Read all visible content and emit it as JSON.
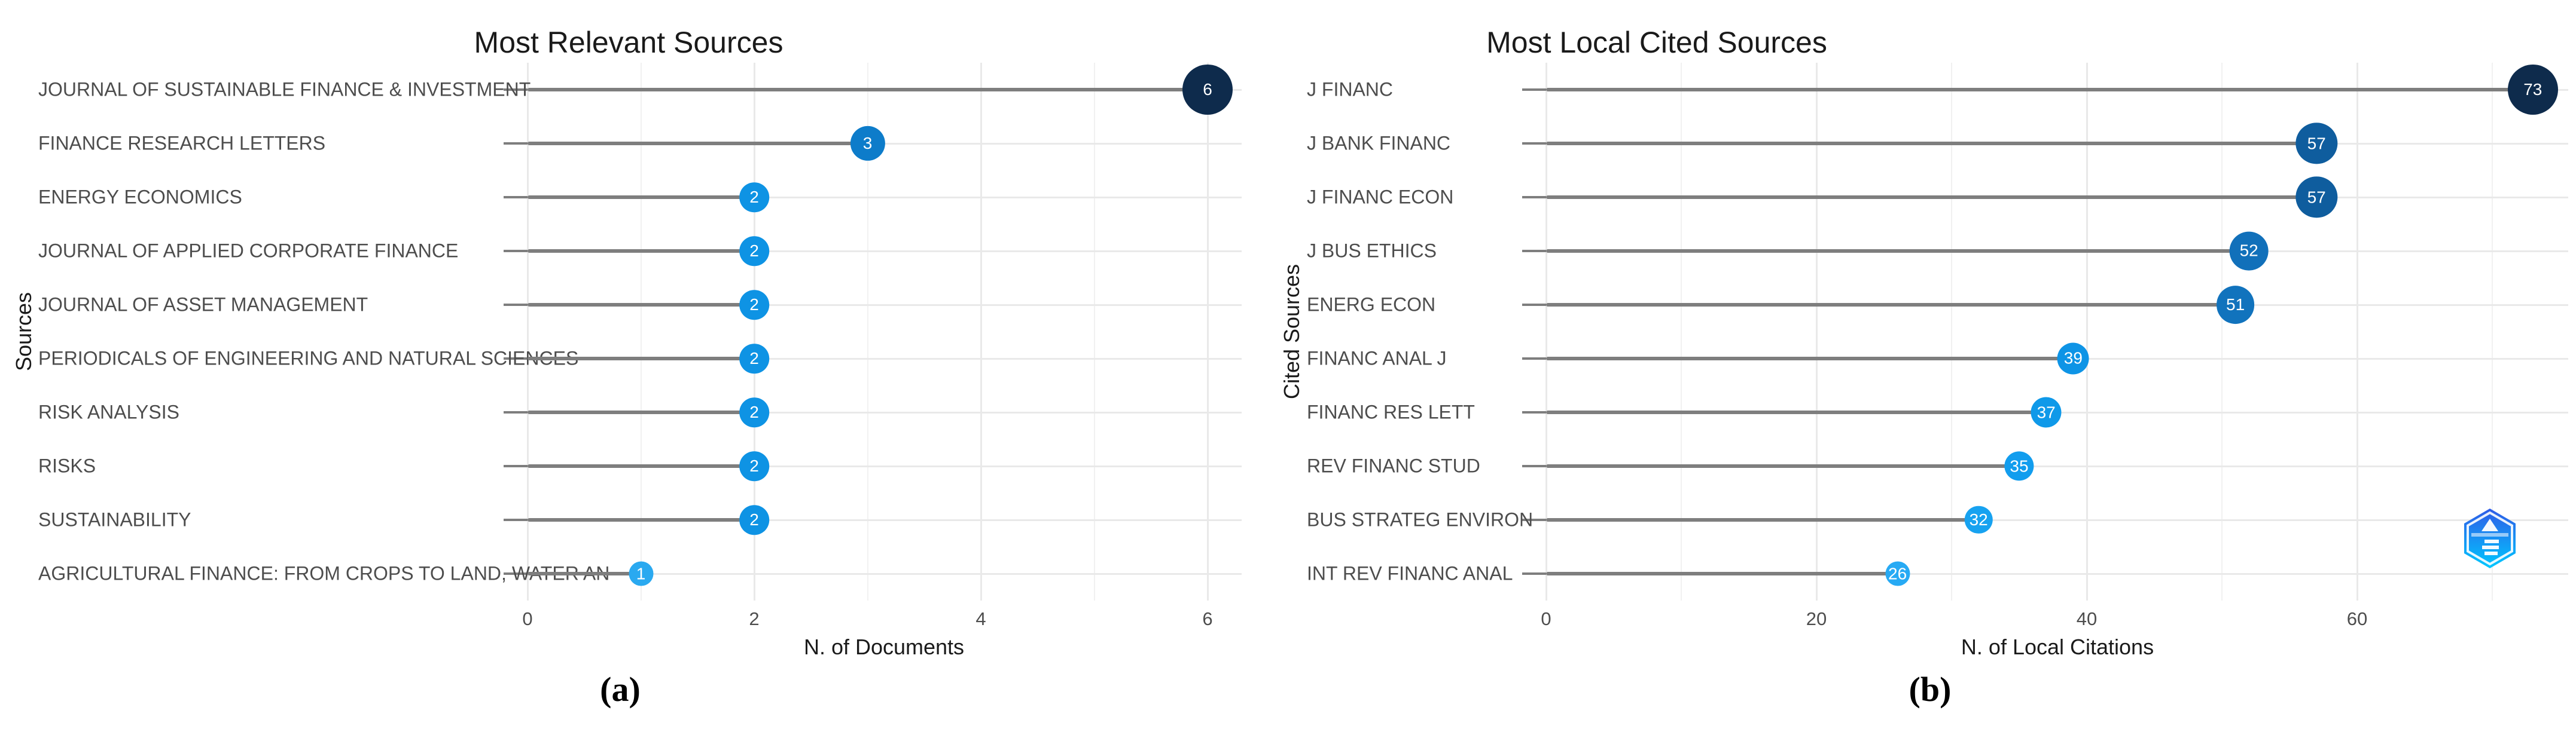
{
  "page": {
    "background": "#ffffff"
  },
  "captions": {
    "a": "(a)",
    "b": "(b)"
  },
  "colors": {
    "stem": "#7e7e7e",
    "grid_major": "#e9e9e9",
    "grid_minor": "#f1f1f1",
    "axis_text": "#4d4d4d",
    "axis_title": "#1a1a1a",
    "bubble_text": "#ffffff",
    "logo_gradient_top": "#2f5be7",
    "logo_gradient_bottom": "#00c8ff"
  },
  "chart_data": [
    {
      "type": "lollipop",
      "title": "Most Relevant Sources",
      "xlabel": "N. of Documents",
      "ylabel": "Sources",
      "categories": [
        "JOURNAL OF SUSTAINABLE FINANCE & INVESTMENT",
        "FINANCE RESEARCH LETTERS",
        "ENERGY ECONOMICS",
        "JOURNAL OF APPLIED CORPORATE FINANCE",
        "JOURNAL OF ASSET MANAGEMENT",
        "PERIODICALS OF ENGINEERING AND NATURAL SCIENCES",
        "RISK ANALYSIS",
        "RISKS",
        "SUSTAINABILITY",
        "AGRICULTURAL FINANCE: FROM CROPS TO LAND, WATER AN"
      ],
      "values": [
        6,
        3,
        2,
        2,
        2,
        2,
        2,
        2,
        2,
        1
      ],
      "point_colors": [
        "#0e2b4c",
        "#0d7cca",
        "#0e93e4",
        "#0e93e4",
        "#0e93e4",
        "#0e93e4",
        "#0e93e4",
        "#0e93e4",
        "#0e93e4",
        "#2aa9f0"
      ],
      "xticks": [
        0,
        2,
        4,
        6
      ],
      "xticks_minor": [
        1,
        3,
        5
      ],
      "xlim": [
        0,
        6.3
      ],
      "grid": true,
      "legend": "none"
    },
    {
      "type": "lollipop",
      "title": "Most Local Cited Sources",
      "xlabel": "N. of Local Citations",
      "ylabel": "Cited Sources",
      "categories": [
        "J FINANC",
        "J BANK FINANC",
        "J FINANC ECON",
        "J BUS ETHICS",
        "ENERG ECON",
        "FINANC ANAL J",
        "FINANC RES LETT",
        "REV FINANC STUD",
        "BUS STRATEG ENVIRON",
        "INT REV FINANC ANAL"
      ],
      "values": [
        73,
        57,
        57,
        52,
        51,
        39,
        37,
        35,
        32,
        26
      ],
      "point_colors": [
        "#0e2b4c",
        "#0f5d9e",
        "#0f5d9e",
        "#1170ba",
        "#1173bd",
        "#0e94e6",
        "#0f99e9",
        "#129dee",
        "#17a2f0",
        "#27aaf4"
      ],
      "xticks": [
        0,
        20,
        40,
        60
      ],
      "xticks_minor": [
        10,
        30,
        50,
        70
      ],
      "xlim": [
        0,
        75.6
      ],
      "grid": true,
      "legend": "none"
    }
  ]
}
